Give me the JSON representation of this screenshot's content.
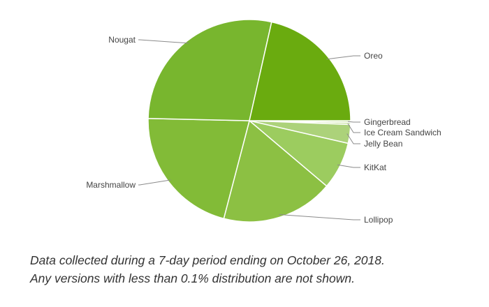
{
  "chart_data": {
    "type": "pie",
    "slices": [
      {
        "label": "Gingerbread",
        "value": 0.3,
        "color": "#c9e2a3"
      },
      {
        "label": "Ice Cream Sandwich",
        "value": 0.3,
        "color": "#bcdc8c"
      },
      {
        "label": "Jelly Bean",
        "value": 3.0,
        "color": "#acd27a"
      },
      {
        "label": "KitKat",
        "value": 7.6,
        "color": "#9ccc5f"
      },
      {
        "label": "Lollipop",
        "value": 17.9,
        "color": "#8cc043"
      },
      {
        "label": "Marshmallow",
        "value": 21.3,
        "color": "#82bb37"
      },
      {
        "label": "Nougat",
        "value": 28.2,
        "color": "#78b62e"
      },
      {
        "label": "Oreo",
        "value": 21.5,
        "color": "#6aab0f"
      }
    ]
  },
  "caption": {
    "line1": "Data collected during a 7-day period ending on October 26, 2018.",
    "line2": "Any versions with less than 0.1% distribution are not shown."
  }
}
